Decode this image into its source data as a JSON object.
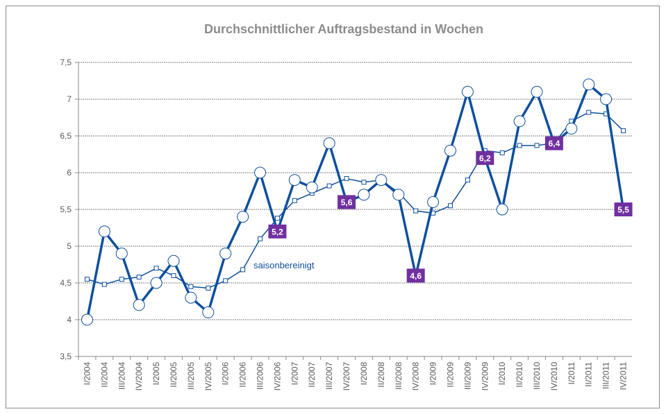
{
  "chart_data": {
    "type": "line",
    "title": "Durchschnittlicher Auftragsbestand in Wochen",
    "categories": [
      "I/2004",
      "II/2004",
      "III/2004",
      "IV/2004",
      "I/2005",
      "II/2005",
      "III/2005",
      "IV/2005",
      "I/2006",
      "II/2006",
      "III/2006",
      "IV/2006",
      "I/2007",
      "II/2007",
      "III/2007",
      "IV/2007",
      "I/2008",
      "II/2008",
      "III/2008",
      "IV/2008",
      "I/2009",
      "II/2009",
      "III/2009",
      "IV/2009",
      "I/2010",
      "II/2010",
      "III/2010",
      "IV/2010",
      "I/2011",
      "II/2011",
      "III/2011",
      "IV/2011"
    ],
    "series": [
      {
        "color": "#0d4f9e",
        "marker": "circle",
        "values": [
          4.0,
          5.2,
          4.9,
          4.2,
          4.5,
          4.8,
          4.3,
          4.1,
          4.9,
          5.4,
          6.0,
          5.2,
          5.9,
          5.8,
          6.4,
          5.6,
          5.7,
          5.9,
          5.7,
          4.6,
          5.6,
          6.3,
          7.1,
          6.2,
          5.5,
          6.7,
          7.1,
          6.4,
          6.6,
          7.2,
          7.0,
          5.5
        ],
        "value_labels": [
          null,
          null,
          null,
          null,
          null,
          null,
          null,
          null,
          null,
          null,
          null,
          "5,2",
          null,
          null,
          null,
          "5,6",
          null,
          null,
          null,
          "4,6",
          null,
          null,
          null,
          "6,2",
          null,
          null,
          null,
          "6,4",
          null,
          null,
          null,
          "5,5"
        ],
        "label_color": "#7030a0"
      },
      {
        "name": "saisonbereinigt",
        "color": "#0d4f9e",
        "marker": "square",
        "values": [
          4.55,
          4.48,
          4.55,
          4.58,
          4.7,
          4.6,
          4.45,
          4.43,
          4.53,
          4.68,
          5.1,
          5.38,
          5.62,
          5.72,
          5.82,
          5.92,
          5.87,
          5.9,
          5.73,
          5.48,
          5.45,
          5.55,
          5.9,
          6.3,
          6.27,
          6.37,
          6.37,
          6.4,
          6.7,
          6.82,
          6.8,
          6.57
        ]
      }
    ],
    "ylim": [
      3.5,
      7.5
    ],
    "yticks": [
      {
        "value": 3.5,
        "label": "3,5"
      },
      4,
      {
        "value": 4.5,
        "label": "4,5"
      },
      5,
      {
        "value": 5.5,
        "label": "5,5"
      },
      6,
      {
        "value": 6.5,
        "label": "6,5"
      },
      7,
      {
        "value": 7.5,
        "label": "7,5"
      }
    ],
    "grid": true
  }
}
